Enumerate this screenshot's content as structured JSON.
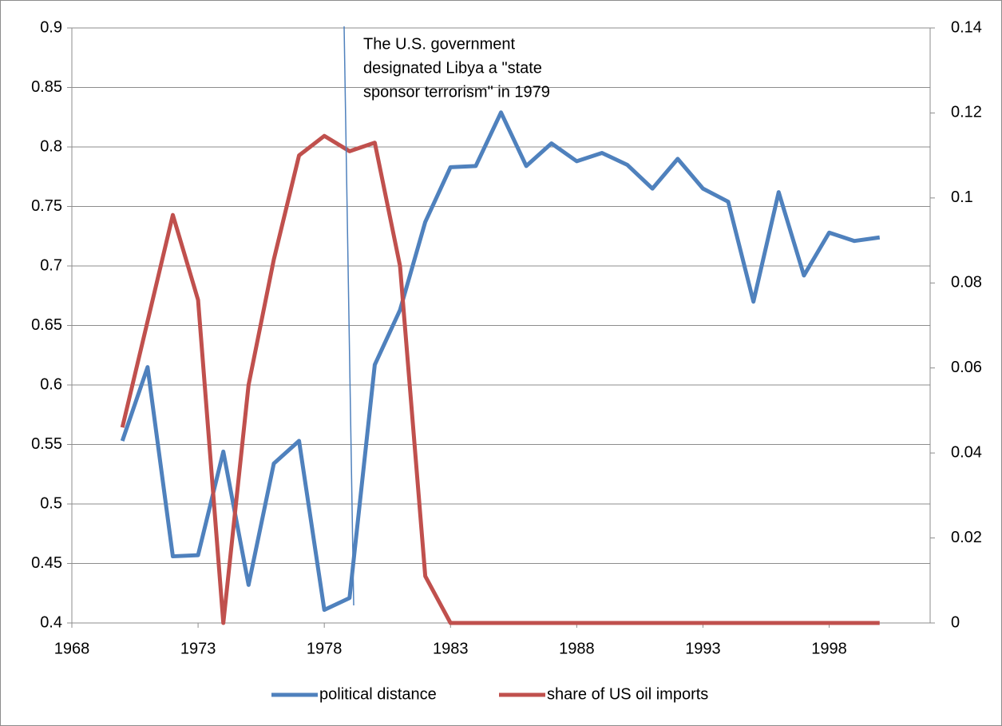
{
  "chart_data": {
    "type": "line",
    "x": [
      1970,
      1971,
      1972,
      1973,
      1974,
      1975,
      1976,
      1977,
      1978,
      1979,
      1980,
      1981,
      1982,
      1983,
      1984,
      1985,
      1986,
      1987,
      1988,
      1989,
      1990,
      1991,
      1992,
      1993,
      1994,
      1995,
      1996,
      1997,
      1998,
      1999,
      2000
    ],
    "series": [
      {
        "name": "political distance",
        "color": "#4f81bd",
        "axis": "y",
        "values": [
          0.553,
          0.615,
          0.456,
          0.457,
          0.544,
          0.432,
          0.534,
          0.553,
          0.411,
          0.421,
          0.617,
          0.663,
          0.737,
          0.783,
          0.784,
          0.829,
          0.784,
          0.803,
          0.788,
          0.795,
          0.785,
          0.765,
          0.79,
          0.765,
          0.754,
          0.67,
          0.762,
          0.692,
          0.728,
          0.721,
          0.724
        ]
      },
      {
        "name": "share of US oil imports",
        "color": "#c0504d",
        "axis": "y2",
        "values": [
          0.046,
          0.071,
          0.096,
          0.076,
          0,
          0.056,
          0.0855,
          0.11,
          0.1146,
          0.111,
          0.113,
          0.084,
          0.011,
          0,
          0,
          0,
          0,
          0,
          0,
          0,
          0,
          0,
          0,
          0,
          0,
          0,
          0,
          0,
          0,
          0,
          0
        ]
      }
    ],
    "xlim": [
      1968,
      2002
    ],
    "xticks": [
      1968,
      1973,
      1978,
      1983,
      1988,
      1993,
      1998
    ],
    "ylim": [
      0.4,
      0.9
    ],
    "yticks": [
      0.4,
      0.45,
      0.5,
      0.55,
      0.6,
      0.65,
      0.7,
      0.75,
      0.8,
      0.85,
      0.9
    ],
    "y2lim": [
      0,
      0.14
    ],
    "y2ticks": [
      0,
      0.02,
      0.04,
      0.06,
      0.08,
      0.1,
      0.12,
      0.14
    ],
    "grid": true,
    "legend": "bottom",
    "annotation": {
      "lines": [
        "The U.S. government",
        "designated Libya a \"state",
        "sponsor terrorism\" in 1979"
      ]
    }
  }
}
